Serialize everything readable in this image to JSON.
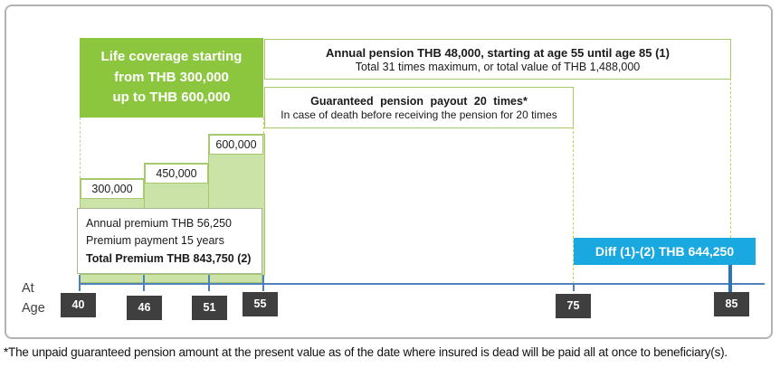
{
  "colors": {
    "accent_green": "#8CC63F",
    "light_green": "#CBE3A6",
    "border_green": "#A5C96B",
    "diff_blue": "#19A8E0",
    "timeline_blue": "#4F81BD",
    "dark_chip": "#3F3F3F"
  },
  "diagram": {
    "life_coverage_box": {
      "line1": "Life coverage starting",
      "line2": "from THB 300,000",
      "line3": "up to THB 600,000"
    },
    "annual_pension_box": {
      "title": "Annual pension THB 48,000, starting at age 55 until age 85 (1)",
      "subtitle": "Total 31 times maximum, or total value of THB 1,488,000"
    },
    "guaranteed_pension_box": {
      "title": "Guaranteed pension payout 20 times*",
      "subtitle": "In case of death before receiving the pension for 20 times"
    },
    "coverage_steps": [
      {
        "label": "300,000"
      },
      {
        "label": "450,000"
      },
      {
        "label": "600,000"
      }
    ],
    "premium_box": {
      "line1": "Annual premium THB 56,250",
      "line2": "Premium payment 15 years",
      "total": "Total Premium THB 843,750 (2)"
    },
    "diff_box": {
      "label": "Diff (1)-(2) THB 644,250"
    },
    "timeline": {
      "axis_label_line1": "At",
      "axis_label_line2": "Age",
      "ages": [
        "40",
        "46",
        "51",
        "55",
        "75",
        "85"
      ]
    }
  },
  "footnote": "*The unpaid guaranteed pension amount at the present value as of the date where insured is dead will be paid all at once to beneficiary(s)."
}
